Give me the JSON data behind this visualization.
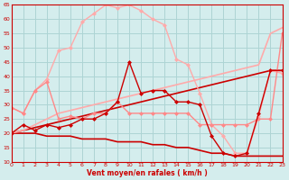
{
  "background_color": "#d4eded",
  "grid_color": "#add4d4",
  "xlabel": "Vent moyen/en rafales ( km/h )",
  "title_color": "#cc0000",
  "ylim": [
    10,
    65
  ],
  "xlim": [
    0,
    23
  ],
  "yticks": [
    10,
    15,
    20,
    25,
    30,
    35,
    40,
    45,
    50,
    55,
    60,
    65
  ],
  "xticks": [
    0,
    1,
    2,
    3,
    4,
    5,
    6,
    7,
    8,
    9,
    10,
    11,
    12,
    13,
    14,
    15,
    16,
    17,
    18,
    19,
    20,
    21,
    22,
    23
  ],
  "lines": [
    {
      "x": [
        0,
        1,
        2,
        3,
        4,
        5,
        6,
        7,
        8,
        9,
        10,
        11,
        12,
        13,
        14,
        15,
        16,
        17,
        18,
        19,
        20,
        21,
        22,
        23
      ],
      "y": [
        20,
        20,
        20,
        19,
        19,
        19,
        18,
        18,
        18,
        17,
        17,
        17,
        16,
        16,
        15,
        15,
        14,
        13,
        13,
        12,
        12,
        12,
        12,
        12
      ],
      "color": "#cc0000",
      "lw": 1.2,
      "marker": null,
      "ms": 0,
      "alpha": 1.0
    },
    {
      "x": [
        0,
        1,
        2,
        3,
        4,
        5,
        6,
        7,
        8,
        9,
        10,
        11,
        12,
        13,
        14,
        15,
        16,
        17,
        18,
        19,
        20,
        21,
        22,
        23
      ],
      "y": [
        20,
        21,
        22,
        23,
        24,
        25,
        26,
        27,
        28,
        29,
        30,
        31,
        32,
        33,
        34,
        35,
        36,
        37,
        38,
        39,
        40,
        41,
        42,
        42
      ],
      "color": "#cc0000",
      "lw": 1.2,
      "marker": null,
      "ms": 0,
      "alpha": 1.0
    },
    {
      "x": [
        0,
        1,
        2,
        3,
        4,
        5,
        6,
        7,
        8,
        9,
        10,
        11,
        12,
        13,
        14,
        15,
        16,
        17,
        18,
        19,
        20,
        21,
        22,
        23
      ],
      "y": [
        20,
        21,
        23,
        25,
        27,
        28,
        29,
        30,
        31,
        32,
        33,
        34,
        35,
        36,
        37,
        38,
        39,
        40,
        41,
        42,
        43,
        44,
        55,
        57
      ],
      "color": "#ffaaaa",
      "lw": 1.2,
      "marker": null,
      "ms": 0,
      "alpha": 1.0
    },
    {
      "x": [
        0,
        1,
        2,
        3,
        4,
        5,
        6,
        7,
        8,
        9,
        10,
        11,
        12,
        13,
        14,
        15,
        16,
        17,
        18,
        19,
        20,
        21,
        22,
        23
      ],
      "y": [
        29,
        27,
        35,
        39,
        49,
        50,
        59,
        62,
        65,
        64,
        65,
        63,
        60,
        58,
        46,
        44,
        34,
        23,
        19,
        13,
        13,
        26,
        42,
        41
      ],
      "color": "#ffaaaa",
      "lw": 1.0,
      "marker": "D",
      "ms": 2.0,
      "alpha": 1.0
    },
    {
      "x": [
        0,
        1,
        2,
        3,
        4,
        5,
        6,
        7,
        8,
        9,
        10,
        11,
        12,
        13,
        14,
        15,
        16,
        17,
        18,
        19,
        20,
        21,
        22,
        23
      ],
      "y": [
        29,
        27,
        35,
        38,
        25,
        26,
        25,
        27,
        27,
        31,
        27,
        27,
        27,
        27,
        27,
        27,
        23,
        23,
        23,
        23,
        23,
        25,
        25,
        55
      ],
      "color": "#ff8888",
      "lw": 1.0,
      "marker": "D",
      "ms": 2.0,
      "alpha": 1.0
    },
    {
      "x": [
        0,
        1,
        2,
        3,
        4,
        5,
        6,
        7,
        8,
        9,
        10,
        11,
        12,
        13,
        14,
        15,
        16,
        17,
        18,
        19,
        20,
        21,
        22,
        23
      ],
      "y": [
        20,
        23,
        21,
        23,
        22,
        23,
        25,
        25,
        27,
        31,
        45,
        34,
        35,
        35,
        31,
        31,
        30,
        19,
        13,
        12,
        13,
        27,
        42,
        42
      ],
      "color": "#cc0000",
      "lw": 1.0,
      "marker": "D",
      "ms": 2.0,
      "alpha": 1.0
    }
  ]
}
